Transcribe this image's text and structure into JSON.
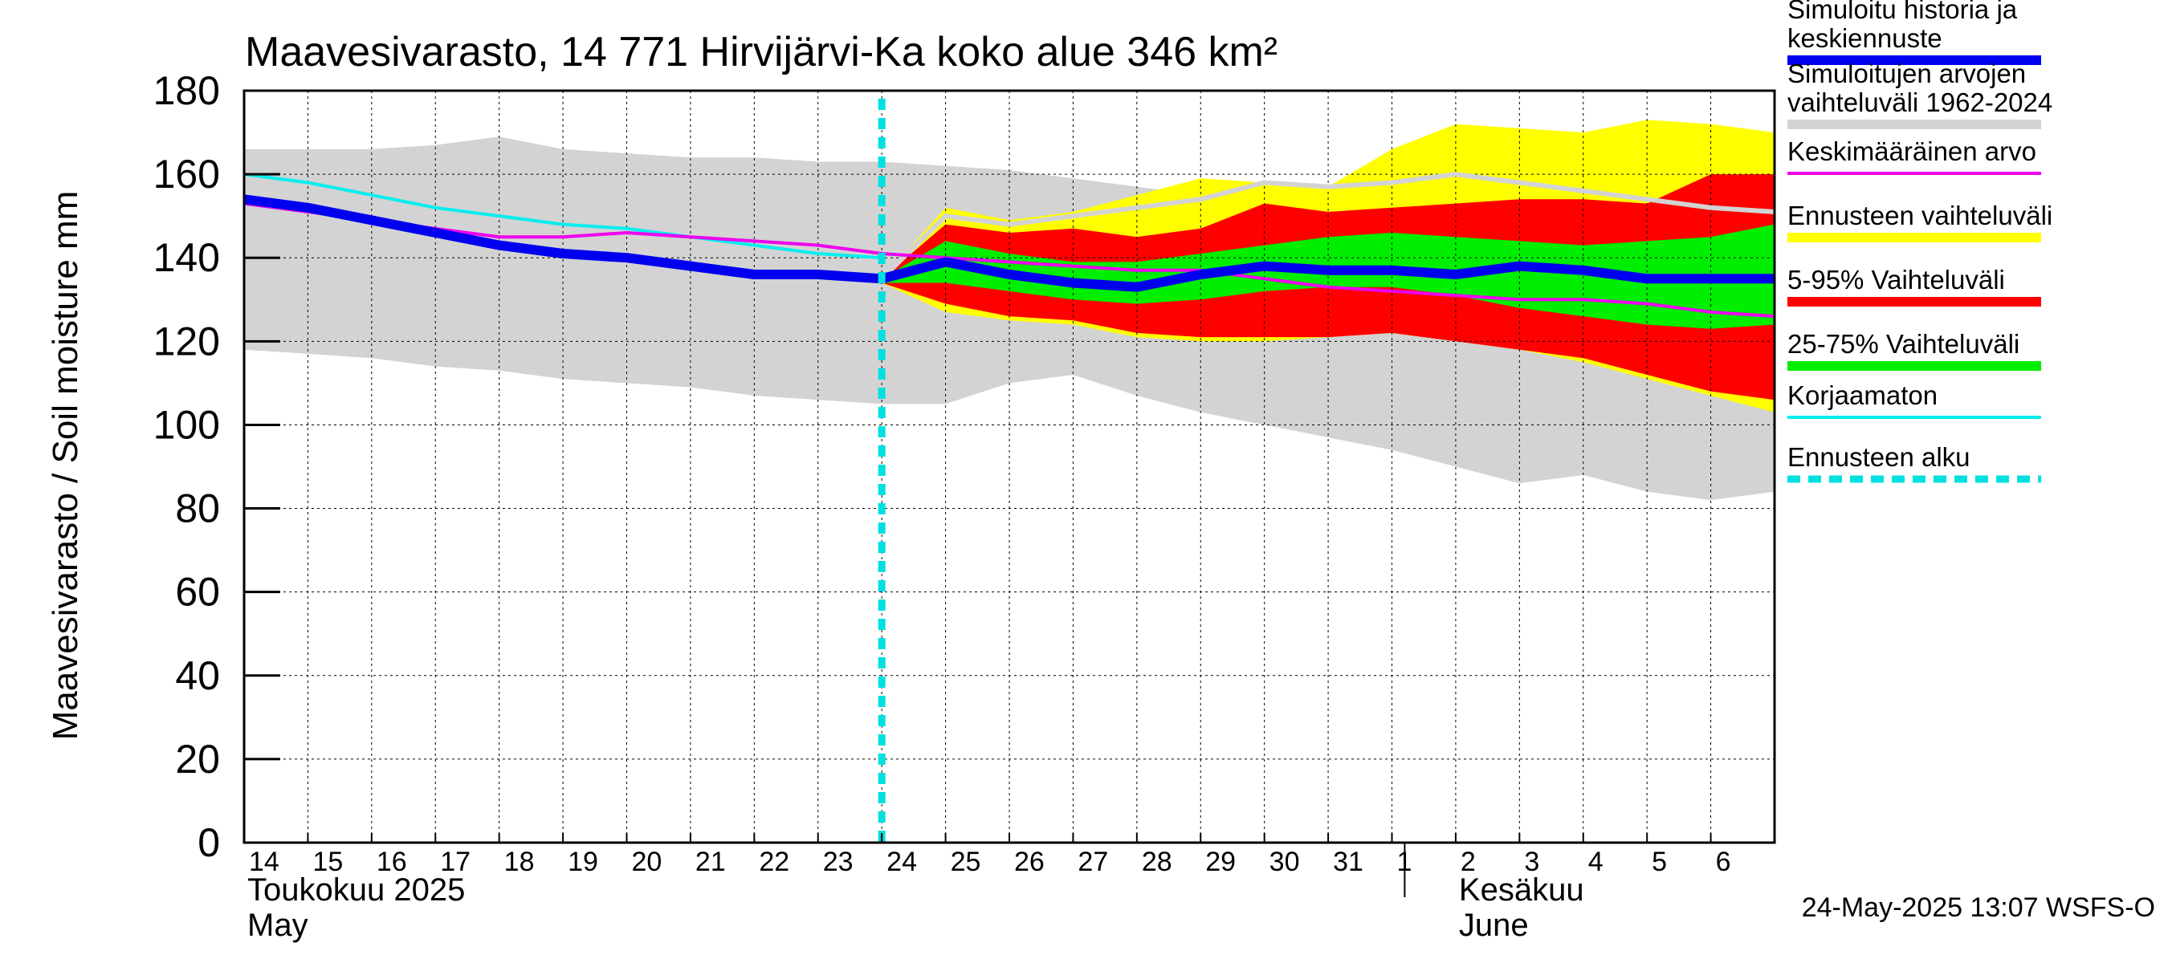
{
  "chart_data": {
    "type": "area",
    "title": "Maavesivarasto, 14 771 Hirvijärvi-Ka koko alue 346 km²",
    "ylabel": "Maavesivarasto / Soil moisture   mm",
    "ylim": [
      0,
      180
    ],
    "yticks": [
      0,
      20,
      40,
      60,
      80,
      100,
      120,
      140,
      160,
      180
    ],
    "xlim": [
      0,
      24
    ],
    "x_tick_labels": [
      "14",
      "15",
      "16",
      "17",
      "18",
      "19",
      "20",
      "21",
      "22",
      "23",
      "24",
      "25",
      "26",
      "27",
      "28",
      "29",
      "30",
      "31",
      "1",
      "2",
      "3",
      "4",
      "5",
      "6"
    ],
    "month_labels": [
      {
        "line1": "Toukokuu  2025",
        "line2": "May",
        "x": 0
      },
      {
        "line1": "Kesäkuu",
        "line2": "June",
        "x": 19
      }
    ],
    "month_divider_x": 18.2,
    "forecast_start_x": 10,
    "timestamp": "24-May-2025 13:07 WSFS-O",
    "colors": {
      "history": "#d3d3d3",
      "forecast_range": "#ffff00",
      "p5_95": "#ff0000",
      "p25_75": "#00ee00",
      "median": "#0000ee",
      "mean": "#ee00ee",
      "uncorrected": "#00eeee",
      "forecast_start": "#00e0e0"
    },
    "legend": [
      {
        "label": "Simuloitu historia ja keskiennuste",
        "lines": [
          "Simuloitu historia ja",
          "keskiennuste"
        ],
        "color": "#0000ee",
        "style": "thick"
      },
      {
        "label": "Simuloitujen arvojen vaihteluväli 1962-2024",
        "lines": [
          "Simuloitujen arvojen",
          "vaihteluväli 1962-2024"
        ],
        "color": "#d3d3d3",
        "style": "thick"
      },
      {
        "label": "Keskimääräinen arvo",
        "lines": [
          "Keskimääräinen arvo"
        ],
        "color": "#ee00ee",
        "style": "thin"
      },
      {
        "label": "Ennusteen vaihteluväli",
        "lines": [
          "Ennusteen vaihteluväli"
        ],
        "color": "#ffff00",
        "style": "thick"
      },
      {
        "label": "5-95% Vaihteluväli",
        "lines": [
          "5-95% Vaihteluväli"
        ],
        "color": "#ff0000",
        "style": "thick"
      },
      {
        "label": "25-75% Vaihteluväli",
        "lines": [
          "25-75% Vaihteluväli"
        ],
        "color": "#00ee00",
        "style": "thick"
      },
      {
        "label": "Korjaamaton",
        "lines": [
          "Korjaamaton"
        ],
        "color": "#00eeee",
        "style": "thin"
      },
      {
        "label": "Ennusteen alku",
        "lines": [
          "Ennusteen alku"
        ],
        "color": "#00e0e0",
        "style": "dashed"
      }
    ],
    "series": {
      "history_band": {
        "x": [
          0,
          1,
          2,
          3,
          4,
          5,
          6,
          7,
          8,
          9,
          10,
          11,
          12,
          13,
          14,
          15,
          16,
          17,
          18,
          19,
          20,
          21,
          22,
          23,
          24
        ],
        "upper": [
          166,
          166,
          166,
          167,
          169,
          166,
          165,
          164,
          164,
          163,
          163,
          162,
          161,
          159,
          157,
          155,
          152,
          150,
          149,
          148,
          147,
          146,
          145,
          145,
          144
        ],
        "lower": [
          118,
          117,
          116,
          114,
          113,
          111,
          110,
          109,
          107,
          106,
          105,
          105,
          110,
          112,
          107,
          103,
          100,
          97,
          94,
          90,
          86,
          88,
          84,
          82,
          84
        ]
      },
      "forecast_range": {
        "x": [
          10,
          11,
          12,
          13,
          14,
          15,
          16,
          17,
          18,
          19,
          20,
          21,
          22,
          23,
          24
        ],
        "upper": [
          135,
          152,
          149,
          151,
          155,
          159,
          158,
          157,
          166,
          172,
          171,
          170,
          173,
          172,
          170
        ],
        "lower": [
          134,
          127,
          125,
          124,
          121,
          120,
          120,
          121,
          122,
          120,
          118,
          115,
          111,
          107,
          103
        ]
      },
      "p5_95": {
        "x": [
          10,
          11,
          12,
          13,
          14,
          15,
          16,
          17,
          18,
          19,
          20,
          21,
          22,
          23,
          24
        ],
        "upper": [
          135,
          148,
          146,
          147,
          145,
          147,
          153,
          151,
          152,
          153,
          154,
          154,
          153,
          160,
          160
        ],
        "lower": [
          134,
          129,
          126,
          125,
          122,
          121,
          121,
          121,
          122,
          120,
          118,
          116,
          112,
          108,
          106
        ]
      },
      "p25_75": {
        "x": [
          10,
          11,
          12,
          13,
          14,
          15,
          16,
          17,
          18,
          19,
          20,
          21,
          22,
          23,
          24
        ],
        "upper": [
          135,
          144,
          141,
          139,
          139,
          141,
          143,
          145,
          146,
          145,
          144,
          143,
          144,
          145,
          148
        ],
        "lower": [
          134,
          134,
          132,
          130,
          129,
          130,
          132,
          133,
          133,
          131,
          128,
          126,
          124,
          123,
          124
        ]
      },
      "history_forecast": {
        "x": [
          0,
          1,
          2,
          3,
          4,
          5,
          6,
          7,
          8,
          9,
          10,
          11,
          12,
          13,
          14,
          15,
          16,
          17,
          18,
          19,
          20,
          21,
          22,
          23,
          24
        ],
        "values": [
          154,
          152,
          149,
          146,
          143,
          141,
          140,
          138,
          136,
          136,
          135,
          139,
          136,
          134,
          133,
          136,
          138,
          137,
          137,
          136,
          138,
          137,
          135,
          135,
          135
        ]
      },
      "mean": {
        "x": [
          0,
          1,
          2,
          3,
          4,
          5,
          6,
          7,
          8,
          9,
          10,
          11,
          12,
          13,
          14,
          15,
          16,
          17,
          18,
          19,
          20,
          21,
          22,
          23,
          24
        ],
        "values": [
          153,
          151,
          149,
          147,
          145,
          145,
          146,
          145,
          144,
          143,
          141,
          140,
          139,
          138,
          137,
          137,
          135,
          133,
          132,
          131,
          130,
          130,
          129,
          127,
          126
        ]
      },
      "grey_line": {
        "x": [
          10,
          11,
          12,
          13,
          14,
          15,
          16,
          17,
          18,
          19,
          20,
          21,
          22,
          23,
          24
        ],
        "values": [
          135,
          150,
          148,
          150,
          152,
          154,
          158,
          157,
          158,
          160,
          158,
          156,
          154,
          152,
          151
        ]
      },
      "uncorrected": {
        "x": [
          0,
          1,
          2,
          3,
          4,
          5,
          6,
          7,
          8,
          9,
          10
        ],
        "values": [
          160,
          158,
          155,
          152,
          150,
          148,
          147,
          145,
          143,
          141,
          140
        ]
      }
    }
  }
}
